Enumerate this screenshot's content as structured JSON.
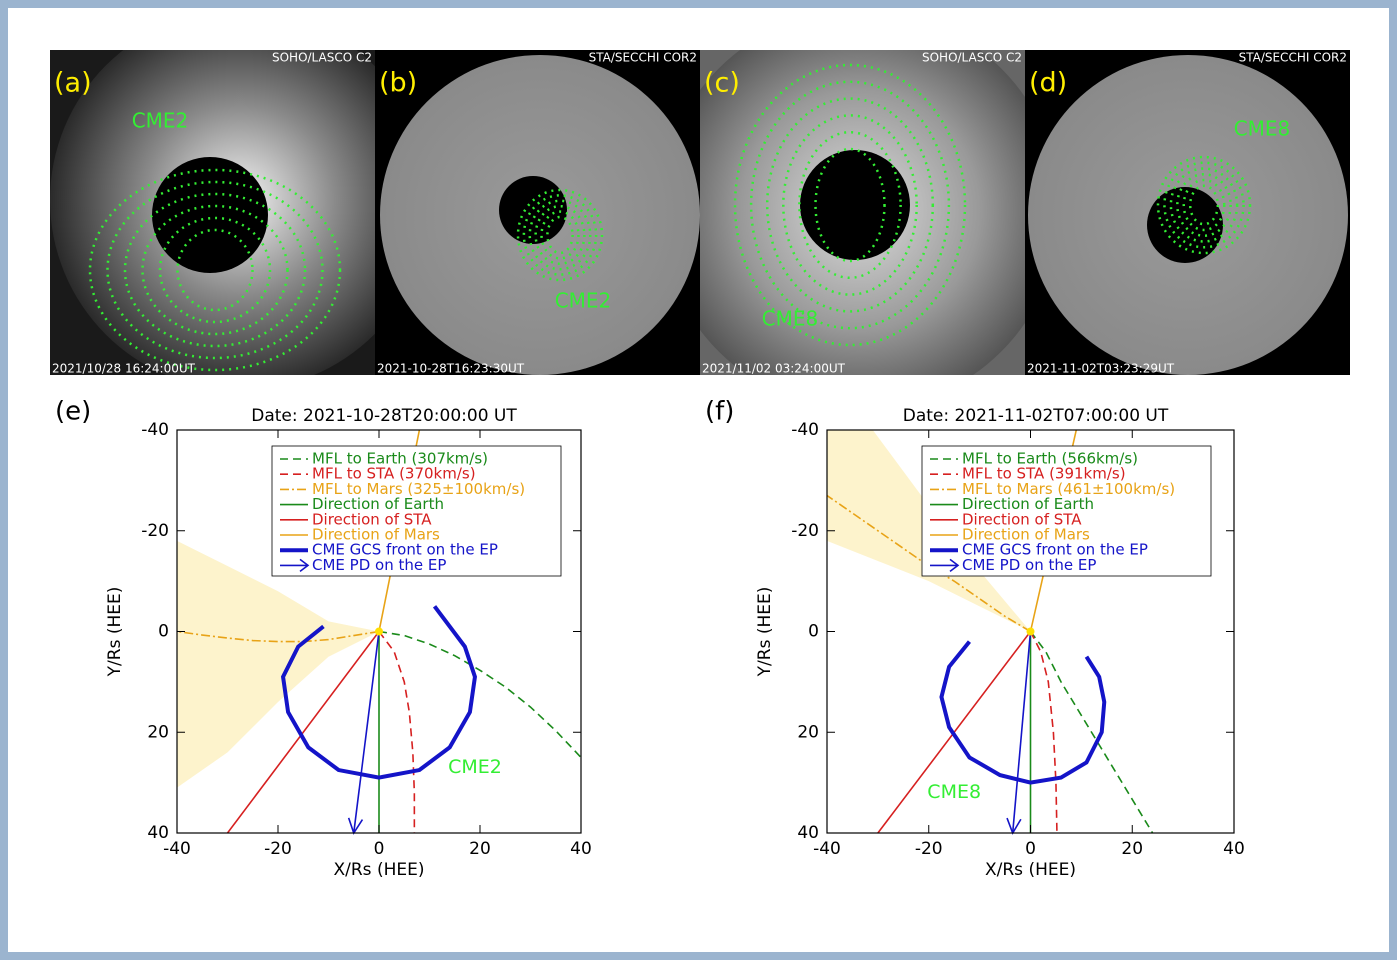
{
  "figure": {
    "panels": [
      {
        "label": "(a)",
        "instrument": "SOHO/LASCO C2",
        "timestamp": "2021/10/28 16:24:00UT",
        "annotation": "CME2"
      },
      {
        "label": "(b)",
        "instrument": "STA/SECCHI COR2",
        "timestamp": "2021-10-28T16:23:30UT",
        "annotation": "CME2"
      },
      {
        "label": "(c)",
        "instrument": "SOHO/LASCO C2",
        "timestamp": "2021/11/02 03:24:00UT",
        "annotation": "CME8"
      },
      {
        "label": "(d)",
        "instrument": "STA/SECCHI COR2",
        "timestamp": "2021-11-02T03:23:29UT",
        "annotation": "CME8"
      }
    ]
  },
  "chart_data": [
    {
      "type": "line",
      "panel_label": "(e)",
      "title": "Date: 2021-10-28T20:00:00 UT",
      "xlabel": "X/Rs (HEE)",
      "ylabel": "Y/Rs (HEE)",
      "xlim": [
        -40,
        40
      ],
      "ylim": [
        -40,
        40
      ],
      "y_inverted": true,
      "xticks": [
        -40,
        -20,
        0,
        20,
        40
      ],
      "yticks": [
        -40,
        -20,
        0,
        20,
        40
      ],
      "legend": "upper right",
      "band": {
        "color": "#fdf3cc",
        "x": [
          0,
          -10,
          -20,
          -30,
          -40,
          -40,
          -30,
          -20,
          -10
        ],
        "y": [
          0,
          -2,
          -8,
          -13,
          -18,
          31,
          24,
          14,
          5
        ]
      },
      "annotation": "CME2",
      "series": [
        {
          "name": "MFL to Earth (307km/s)",
          "color": "#1a8a1a",
          "style": "dashed",
          "x": [
            0,
            5,
            10,
            15,
            20,
            25,
            30,
            35,
            40
          ],
          "y": [
            0,
            0.8,
            2.5,
            4.8,
            7.7,
            11,
            15,
            19.7,
            25
          ]
        },
        {
          "name": "MFL to STA (370km/s)",
          "color": "#d62020",
          "style": "dashed",
          "x": [
            0,
            3,
            5,
            6,
            6.7,
            7,
            7
          ],
          "y": [
            0,
            4,
            10,
            16,
            24,
            32,
            40
          ]
        },
        {
          "name": "MFL to Mars (325±100km/s)",
          "color": "#e8a317",
          "style": "dashdot",
          "x": [
            0,
            -5,
            -10,
            -15,
            -20,
            -25,
            -30,
            -35,
            -40
          ],
          "y": [
            0,
            0.8,
            1.6,
            2,
            2,
            1.8,
            1.3,
            0.7,
            0
          ]
        },
        {
          "name": "Direction of Earth",
          "color": "#1a8a1a",
          "style": "solid",
          "x": [
            0,
            0
          ],
          "y": [
            0,
            40
          ]
        },
        {
          "name": "Direction of STA",
          "color": "#d62020",
          "style": "solid",
          "x": [
            0,
            -30
          ],
          "y": [
            0,
            40
          ]
        },
        {
          "name": "Direction of Mars",
          "color": "#e8a317",
          "style": "solid",
          "x": [
            0,
            8
          ],
          "y": [
            0,
            -40
          ]
        },
        {
          "name": "CME GCS front on the EP",
          "color": "#1414c8",
          "style": "thick",
          "x": [
            -11,
            -16,
            -19,
            -18,
            -14,
            -8,
            0,
            8,
            14,
            18,
            19,
            17,
            11
          ],
          "y": [
            -1,
            3,
            9,
            16,
            23,
            27.5,
            29,
            27.5,
            23,
            16,
            9,
            3,
            -5
          ]
        },
        {
          "name": "CME PD on the EP",
          "color": "#1414c8",
          "style": "arrow",
          "x": [
            0,
            -5
          ],
          "y": [
            0,
            40
          ]
        }
      ]
    },
    {
      "type": "line",
      "panel_label": "(f)",
      "title": "Date: 2021-11-02T07:00:00 UT",
      "xlabel": "X/Rs (HEE)",
      "ylabel": "Y/Rs (HEE)",
      "xlim": [
        -40,
        40
      ],
      "ylim": [
        -40,
        40
      ],
      "y_inverted": true,
      "xticks": [
        -40,
        -20,
        0,
        20,
        40
      ],
      "yticks": [
        -40,
        -20,
        0,
        20,
        40
      ],
      "legend": "upper right",
      "band": {
        "color": "#fdf3cc",
        "x": [
          0,
          -10,
          -20,
          -31,
          -40,
          -40,
          -30,
          -20,
          -10
        ],
        "y": [
          0,
          -12,
          -25,
          -40,
          -40,
          -18,
          -14,
          -10,
          -5
        ]
      },
      "annotation": "CME8",
      "series": [
        {
          "name": "MFL to Earth (566km/s)",
          "color": "#1a8a1a",
          "style": "dashed",
          "x": [
            0,
            3,
            6,
            9,
            12,
            15,
            18,
            21,
            24
          ],
          "y": [
            0,
            4,
            10,
            15,
            20,
            25,
            30,
            35,
            40
          ]
        },
        {
          "name": "MFL to STA (391km/s)",
          "color": "#d62020",
          "style": "dashed",
          "x": [
            0,
            2,
            3.5,
            4.5,
            5,
            5.2
          ],
          "y": [
            0,
            4,
            10,
            20,
            30,
            40
          ]
        },
        {
          "name": "MFL to Mars (461±100km/s)",
          "color": "#e8a317",
          "style": "dashdot",
          "x": [
            0,
            -5,
            -10,
            -15,
            -20,
            -25,
            -30,
            -35,
            -40
          ],
          "y": [
            0,
            -3,
            -6.5,
            -10,
            -13,
            -16.5,
            -20,
            -23.5,
            -27
          ]
        },
        {
          "name": "Direction of Earth",
          "color": "#1a8a1a",
          "style": "solid",
          "x": [
            0,
            0
          ],
          "y": [
            0,
            40
          ]
        },
        {
          "name": "Direction of STA",
          "color": "#d62020",
          "style": "solid",
          "x": [
            0,
            -30
          ],
          "y": [
            0,
            40
          ]
        },
        {
          "name": "Direction of Mars",
          "color": "#e8a317",
          "style": "solid",
          "x": [
            0,
            9
          ],
          "y": [
            0,
            -40
          ]
        },
        {
          "name": "CME GCS front on the EP",
          "color": "#1414c8",
          "style": "thick",
          "x": [
            -12,
            -16,
            -17.5,
            -16,
            -12,
            -6,
            0,
            6,
            11,
            14,
            14.5,
            13.5,
            11
          ],
          "y": [
            2,
            7,
            13,
            19,
            25,
            28.5,
            30,
            29,
            26,
            20,
            14,
            9,
            5
          ]
        },
        {
          "name": "CME PD on the EP",
          "color": "#1414c8",
          "style": "arrow",
          "x": [
            0,
            -3.5
          ],
          "y": [
            0,
            40
          ]
        }
      ]
    }
  ]
}
